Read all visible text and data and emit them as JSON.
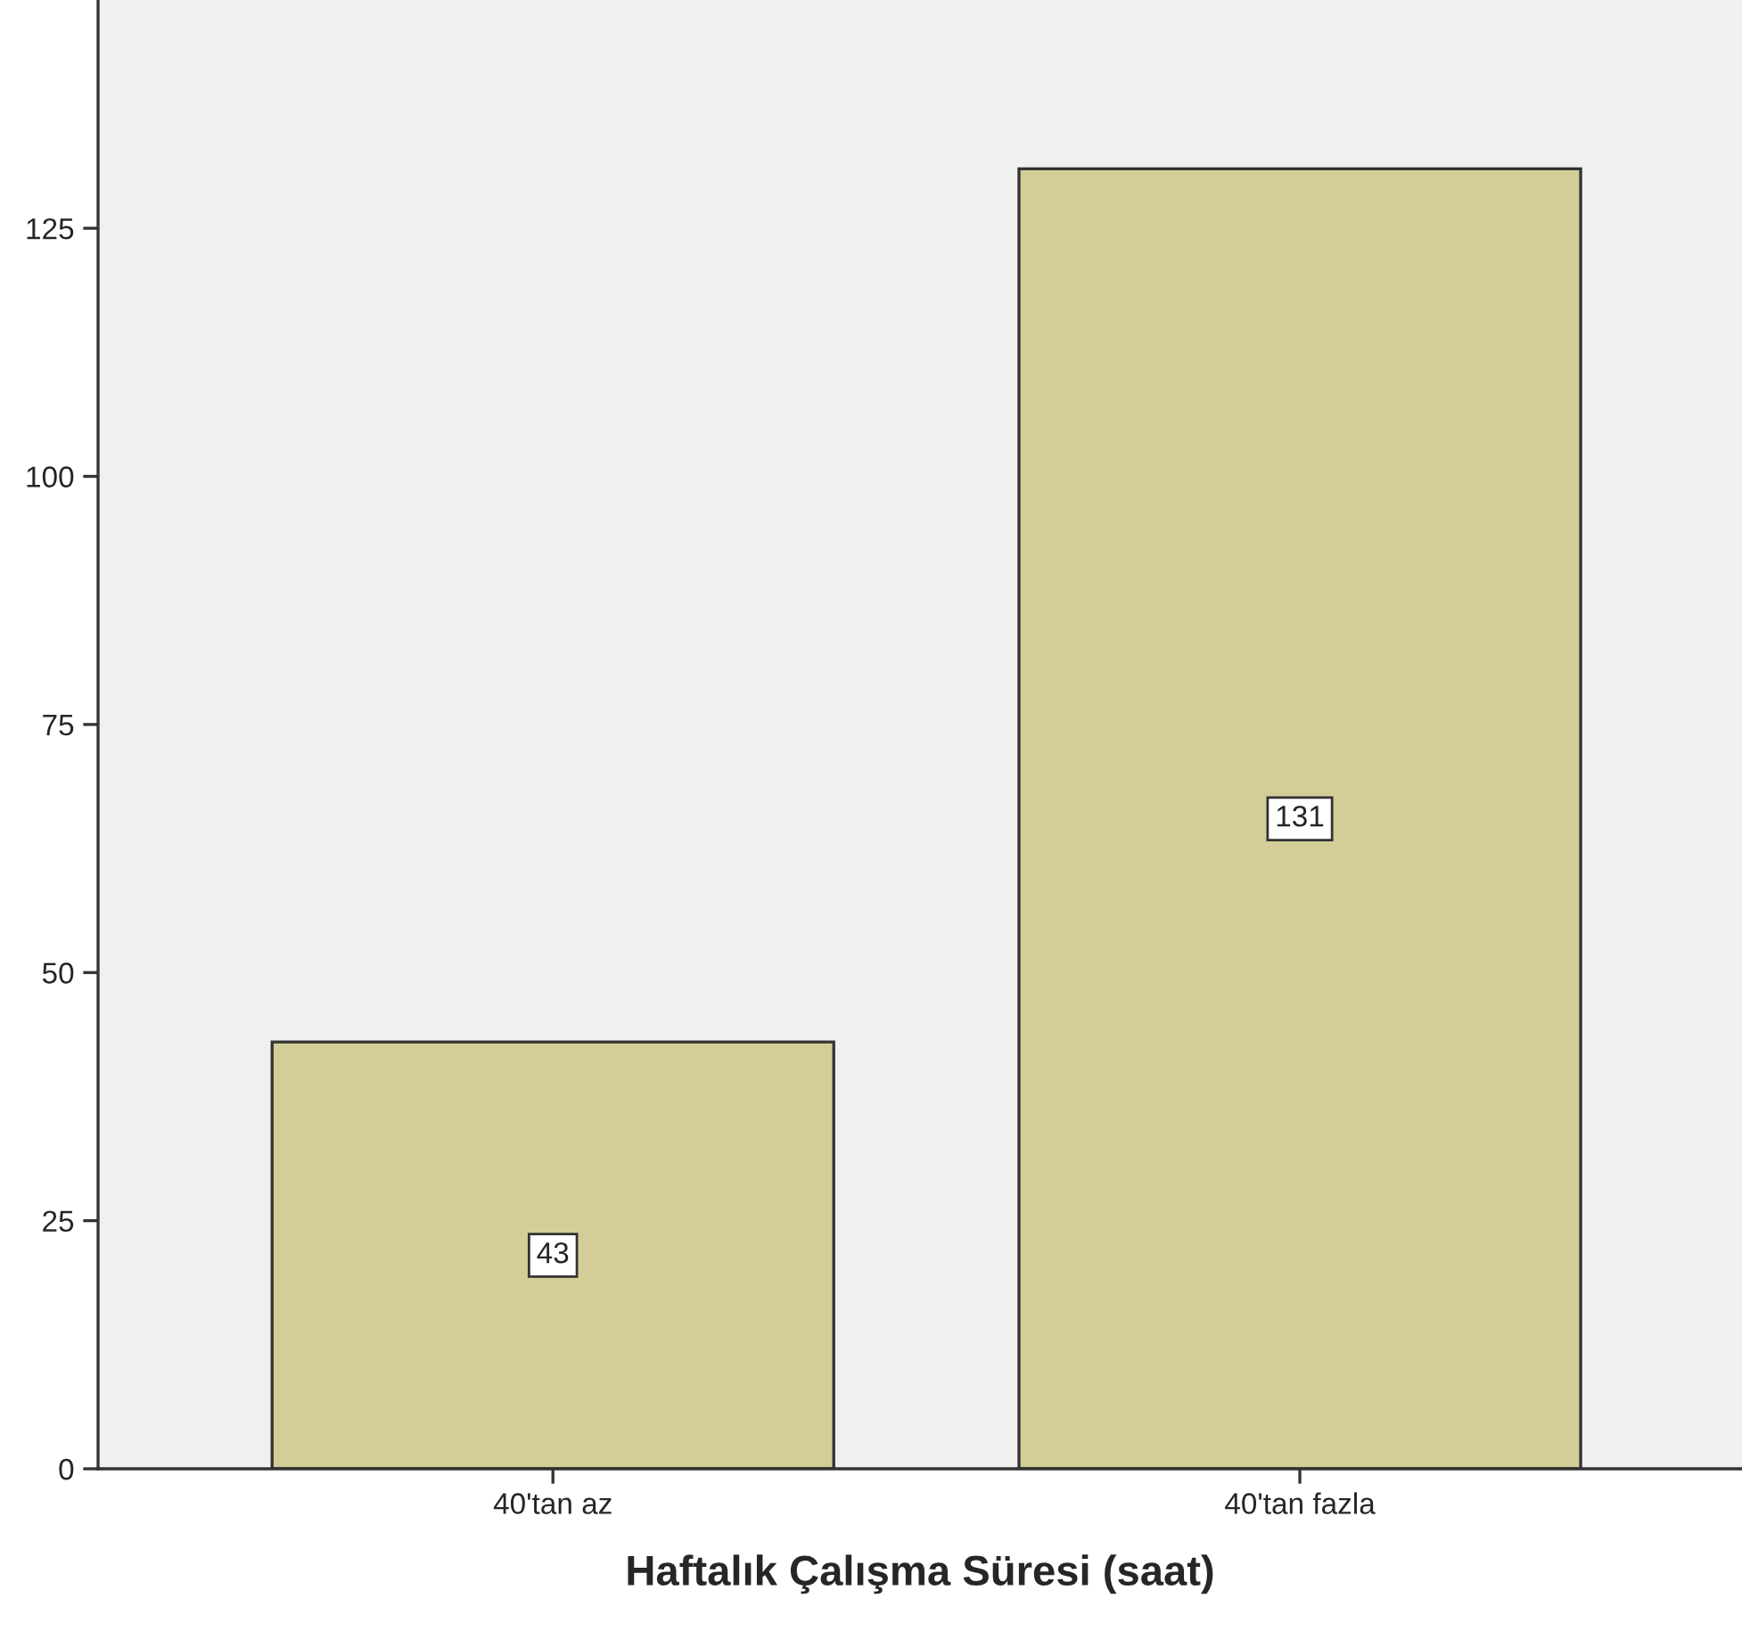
{
  "chart_data": {
    "type": "bar",
    "xlabel": "Haftalık Çalışma Süresi (saat)",
    "categories": [
      "40'tan az",
      "40'tan fazla"
    ],
    "values": [
      43,
      131
    ],
    "color": "#d3ce97",
    "ylim": [
      0,
      148
    ],
    "yticks": [
      0,
      25,
      50,
      75,
      100,
      125
    ],
    "data_labels": true,
    "grid": false,
    "legend": false
  }
}
